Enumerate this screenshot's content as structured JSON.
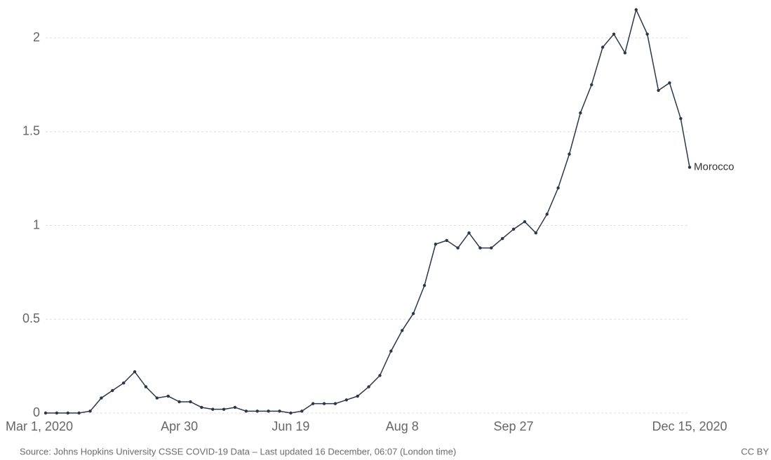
{
  "chart_data": {
    "type": "line",
    "x": [
      "2020-03-01",
      "2020-03-06",
      "2020-03-11",
      "2020-03-16",
      "2020-03-21",
      "2020-03-26",
      "2020-03-31",
      "2020-04-05",
      "2020-04-10",
      "2020-04-15",
      "2020-04-20",
      "2020-04-25",
      "2020-04-30",
      "2020-05-05",
      "2020-05-10",
      "2020-05-15",
      "2020-05-20",
      "2020-05-25",
      "2020-05-30",
      "2020-06-04",
      "2020-06-09",
      "2020-06-14",
      "2020-06-19",
      "2020-06-24",
      "2020-06-29",
      "2020-07-04",
      "2020-07-09",
      "2020-07-14",
      "2020-07-19",
      "2020-07-24",
      "2020-07-29",
      "2020-08-03",
      "2020-08-08",
      "2020-08-13",
      "2020-08-18",
      "2020-08-23",
      "2020-08-28",
      "2020-09-02",
      "2020-09-07",
      "2020-09-12",
      "2020-09-17",
      "2020-09-22",
      "2020-09-27",
      "2020-10-02",
      "2020-10-07",
      "2020-10-12",
      "2020-10-17",
      "2020-10-22",
      "2020-10-27",
      "2020-11-01",
      "2020-11-06",
      "2020-11-11",
      "2020-11-16",
      "2020-11-21",
      "2020-11-26",
      "2020-12-01",
      "2020-12-06",
      "2020-12-11",
      "2020-12-15"
    ],
    "series": [
      {
        "name": "Morocco",
        "color": "#2d3748",
        "values": [
          0,
          0,
          0,
          0,
          0.01,
          0.08,
          0.12,
          0.16,
          0.22,
          0.14,
          0.08,
          0.09,
          0.06,
          0.06,
          0.03,
          0.02,
          0.02,
          0.03,
          0.01,
          0.01,
          0.01,
          0.01,
          0,
          0.01,
          0.05,
          0.05,
          0.05,
          0.07,
          0.09,
          0.14,
          0.2,
          0.33,
          0.44,
          0.53,
          0.68,
          0.9,
          0.92,
          0.88,
          0.96,
          0.88,
          0.88,
          0.93,
          0.98,
          1.02,
          0.96,
          1.06,
          1.2,
          1.38,
          1.6,
          1.75,
          1.95,
          2.02,
          1.92,
          2.15,
          2.02,
          1.72,
          1.76,
          1.57,
          1.31
        ]
      }
    ],
    "xlim": [
      "2020-03-01",
      "2020-12-15"
    ],
    "xticks": [
      {
        "value": "2020-03-01",
        "label": "Mar 1, 2020"
      },
      {
        "value": "2020-04-30",
        "label": "Apr 30"
      },
      {
        "value": "2020-06-19",
        "label": "Jun 19"
      },
      {
        "value": "2020-08-08",
        "label": "Aug 8"
      },
      {
        "value": "2020-09-27",
        "label": "Sep 27"
      },
      {
        "value": "2020-12-15",
        "label": "Dec 15, 2020"
      }
    ],
    "ylim": [
      0,
      2.2
    ],
    "yticks": [
      0,
      0.5,
      1,
      1.5,
      2
    ],
    "grid": true
  },
  "source": "Source: Johns Hopkins University CSSE COVID-19 Data – Last updated 16 December, 06:07 (London time)",
  "license": "CC BY"
}
